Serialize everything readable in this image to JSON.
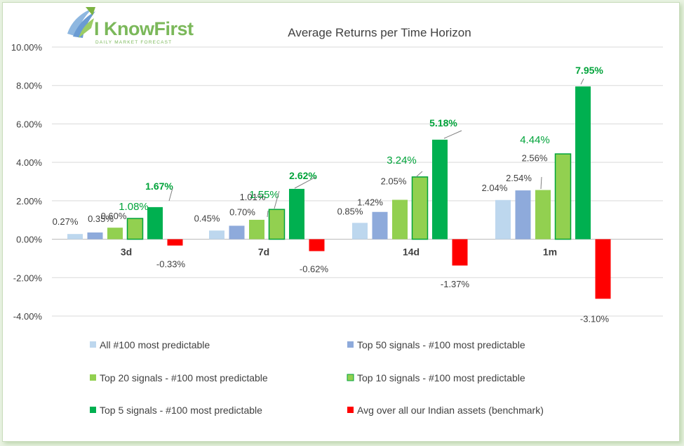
{
  "logo": {
    "name": "I KnowFirst",
    "tagline": "Daily Market Forecast"
  },
  "colors": {
    "all": "#bdd7ee",
    "top50": "#8eaadb",
    "top20": "#92d050",
    "top10": "#92d050",
    "top10_border": "#00a33a",
    "top5": "#00b050",
    "benchmark": "#ff0000",
    "highlight_label": "#00a33a",
    "grid": "#d9d9d9",
    "axis_text": "#404040"
  },
  "chart_data": {
    "type": "bar",
    "title": "Average Returns per Time Horizon",
    "categories": [
      "3d",
      "7d",
      "14d",
      "1m"
    ],
    "ylim": [
      -4,
      10
    ],
    "yticks": [
      "10.00%",
      "8.00%",
      "6.00%",
      "4.00%",
      "2.00%",
      "0.00%",
      "-2.00%",
      "-4.00%"
    ],
    "ytick_values": [
      10,
      8,
      6,
      4,
      2,
      0,
      -2,
      -4
    ],
    "grid": true,
    "legend_position": "bottom",
    "series": [
      {
        "name": "All #100 most predictable",
        "values": [
          0.27,
          0.45,
          0.85,
          2.04
        ],
        "labels": [
          "0.27%",
          "0.45%",
          "0.85%",
          "2.04%"
        ],
        "color": "#bdd7ee"
      },
      {
        "name": "Top 50 signals - #100 most predictable",
        "values": [
          0.35,
          0.7,
          1.42,
          2.54
        ],
        "labels": [
          "0.35%",
          "0.70%",
          "1.42%",
          "2.54%"
        ],
        "color": "#8eaadb"
      },
      {
        "name": "Top 20 signals - #100 most predictable",
        "values": [
          0.6,
          1.01,
          2.05,
          2.56
        ],
        "labels": [
          "0.60%",
          "1.01%",
          "2.05%",
          "2.56%"
        ],
        "color": "#92d050"
      },
      {
        "name": "Top 10 signals - #100 most predictable",
        "values": [
          1.08,
          1.55,
          3.24,
          4.44
        ],
        "labels": [
          "1.08%",
          "1.55%",
          "3.24%",
          "4.44%"
        ],
        "color": "#92d050"
      },
      {
        "name": "Top 5 signals - #100 most predictable",
        "values": [
          1.67,
          2.62,
          5.18,
          7.95
        ],
        "labels": [
          "1.67%",
          "2.62%",
          "5.18%",
          "7.95%"
        ],
        "color": "#00b050"
      },
      {
        "name": "Avg over all our Indian assets (benchmark)",
        "values": [
          -0.33,
          -0.62,
          -1.37,
          -3.1
        ],
        "labels": [
          "-0.33%",
          "-0.62%",
          "-1.37%",
          "-3.10%"
        ],
        "color": "#ff0000"
      }
    ]
  }
}
